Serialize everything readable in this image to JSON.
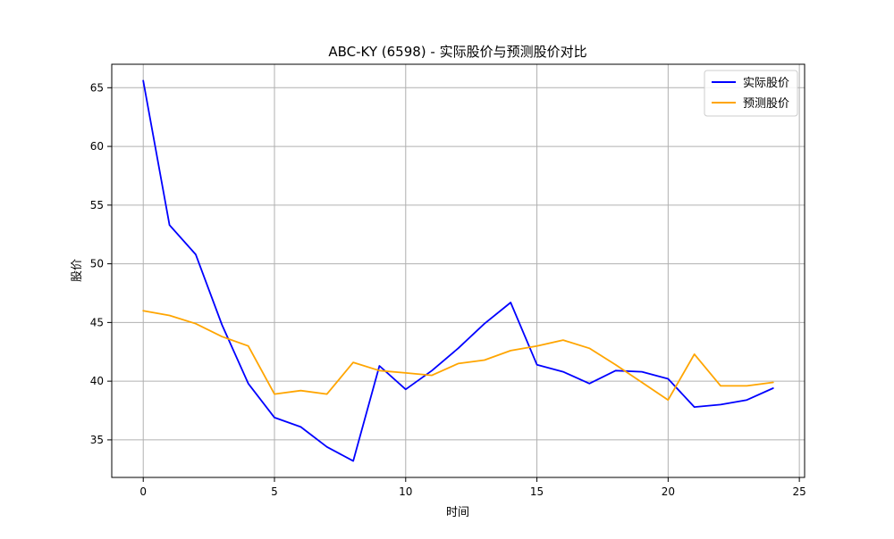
{
  "chart_data": {
    "type": "line",
    "title": "ABC-KY (6598) - 实际股价与预测股价对比",
    "xlabel": "时间",
    "ylabel": "股价",
    "xlim": [
      -1.2,
      25.2
    ],
    "ylim": [
      31.8,
      67.0
    ],
    "xticks": [
      0,
      5,
      10,
      15,
      20,
      25
    ],
    "yticks": [
      35,
      40,
      45,
      50,
      55,
      60,
      65
    ],
    "grid": true,
    "legend_position": "top-right",
    "x": [
      0,
      1,
      2,
      3,
      4,
      5,
      6,
      7,
      8,
      9,
      10,
      11,
      12,
      13,
      14,
      15,
      16,
      17,
      18,
      19,
      20,
      21,
      22,
      23,
      24
    ],
    "series": [
      {
        "name": "实际股价",
        "color": "#0000ff",
        "values": [
          65.6,
          53.3,
          50.8,
          44.8,
          39.8,
          36.9,
          36.1,
          34.4,
          33.2,
          41.3,
          39.3,
          40.9,
          42.8,
          44.9,
          46.7,
          41.4,
          40.8,
          39.8,
          40.9,
          40.8,
          40.2,
          37.8,
          38.0,
          38.4,
          39.4
        ]
      },
      {
        "name": "预测股价",
        "color": "#ffa500",
        "values": [
          46.0,
          45.6,
          44.9,
          43.8,
          43.0,
          38.9,
          39.2,
          38.9,
          41.6,
          40.9,
          40.7,
          40.5,
          41.5,
          41.8,
          42.6,
          43.0,
          43.5,
          42.8,
          41.4,
          39.9,
          38.4,
          42.3,
          39.6,
          39.6,
          39.9
        ]
      }
    ]
  }
}
